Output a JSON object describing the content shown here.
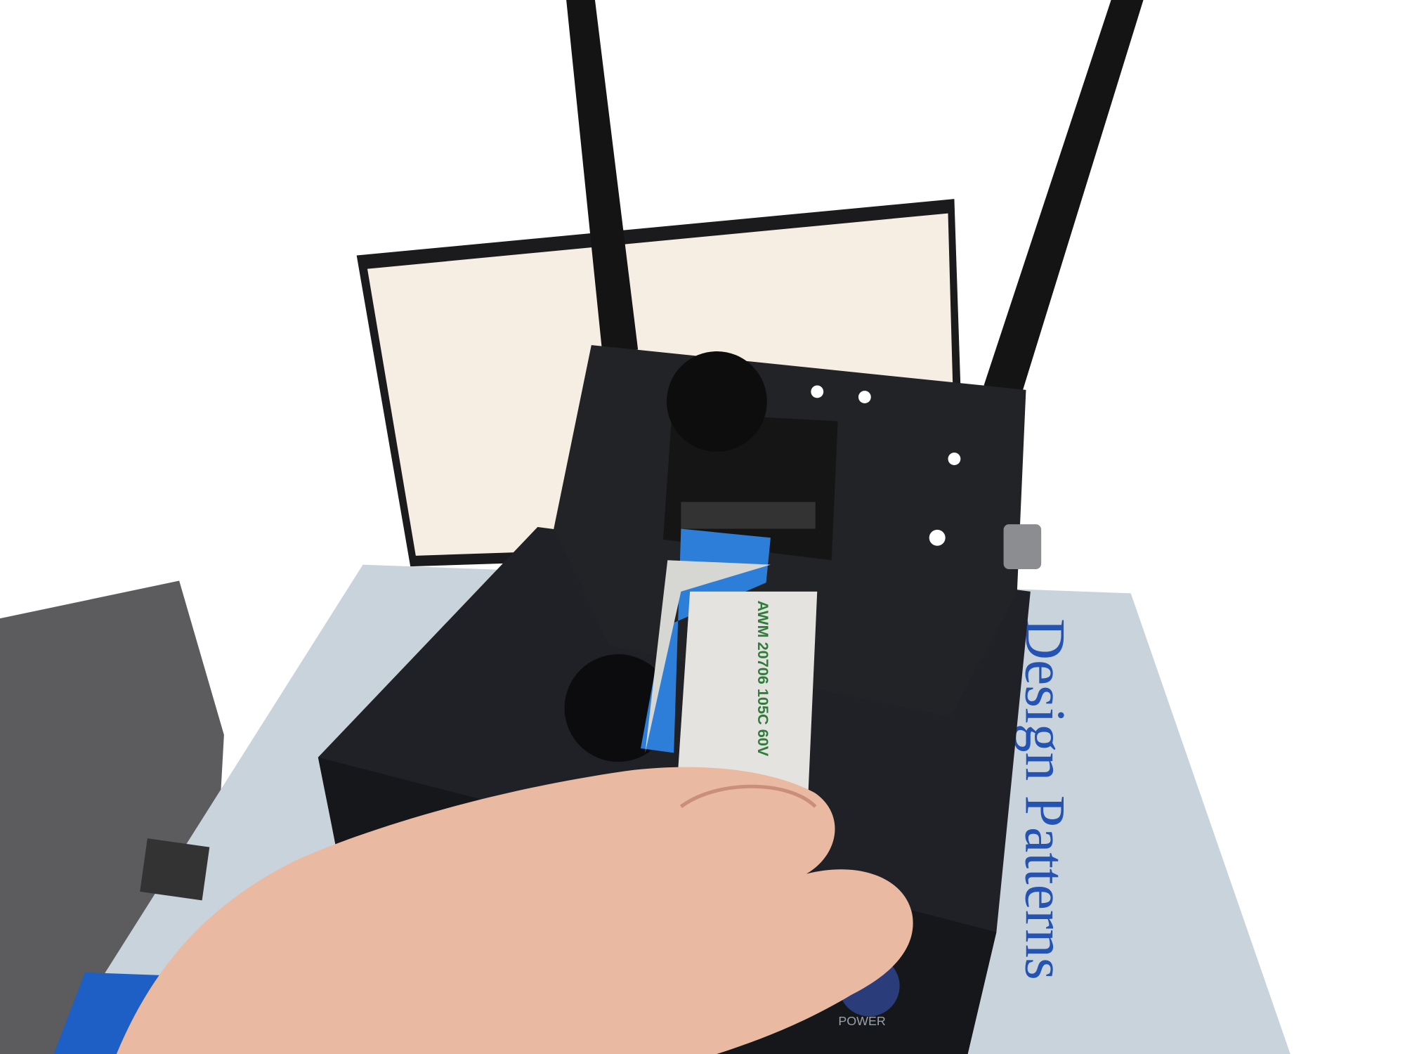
{
  "photo": {
    "book_title": "Design Patterns",
    "button_label": "POWER",
    "cable_print": "AWM 20706 105C 60V"
  }
}
